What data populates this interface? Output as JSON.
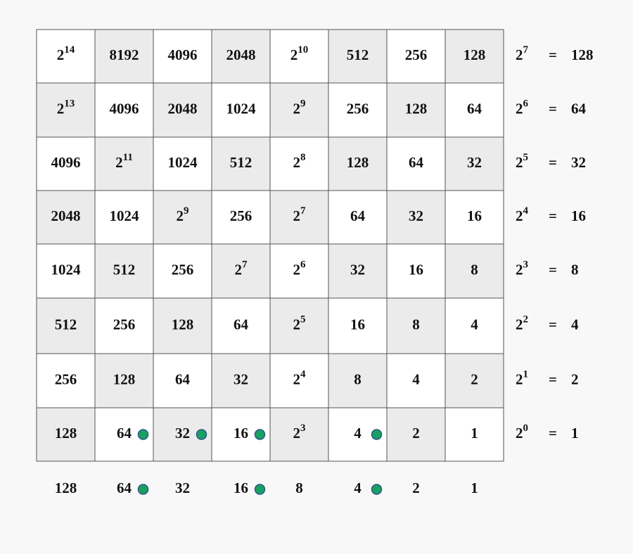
{
  "grid": {
    "rows": [
      [
        {
          "base": "2",
          "exp": "14"
        },
        "8192",
        "4096",
        "2048",
        {
          "base": "2",
          "exp": "10"
        },
        "512",
        "256",
        "128"
      ],
      [
        {
          "base": "2",
          "exp": "13"
        },
        "4096",
        "2048",
        "1024",
        {
          "base": "2",
          "exp": "9"
        },
        "256",
        "128",
        "64"
      ],
      [
        "4096",
        {
          "base": "2",
          "exp": "11"
        },
        "1024",
        "512",
        {
          "base": "2",
          "exp": "8"
        },
        "128",
        "64",
        "32"
      ],
      [
        "2048",
        "1024",
        {
          "base": "2",
          "exp": "9"
        },
        "256",
        {
          "base": "2",
          "exp": "7"
        },
        "64",
        "32",
        "16"
      ],
      [
        "1024",
        "512",
        "256",
        {
          "base": "2",
          "exp": "7"
        },
        {
          "base": "2",
          "exp": "6"
        },
        "32",
        "16",
        "8"
      ],
      [
        "512",
        "256",
        "128",
        "64",
        {
          "base": "2",
          "exp": "5"
        },
        "16",
        "8",
        "4"
      ],
      [
        "256",
        "128",
        "64",
        "32",
        {
          "base": "2",
          "exp": "4"
        },
        "8",
        "4",
        "2"
      ],
      [
        "128",
        "64",
        "32",
        "16",
        {
          "base": "2",
          "exp": "3"
        },
        "4",
        "2",
        "1"
      ]
    ]
  },
  "powers": [
    {
      "base": "2",
      "exp": "7",
      "eq": "=",
      "value": "128"
    },
    {
      "base": "2",
      "exp": "6",
      "eq": "=",
      "value": "64"
    },
    {
      "base": "2",
      "exp": "5",
      "eq": "=",
      "value": "32"
    },
    {
      "base": "2",
      "exp": "4",
      "eq": "=",
      "value": "16"
    },
    {
      "base": "2",
      "exp": "3",
      "eq": "=",
      "value": "8"
    },
    {
      "base": "2",
      "exp": "2",
      "eq": "=",
      "value": "4"
    },
    {
      "base": "2",
      "exp": "1",
      "eq": "=",
      "value": "2"
    },
    {
      "base": "2",
      "exp": "0",
      "eq": "=",
      "value": "1"
    }
  ],
  "bottom": [
    "128",
    "64",
    "32",
    "16",
    "8",
    "4",
    "2",
    "1"
  ]
}
